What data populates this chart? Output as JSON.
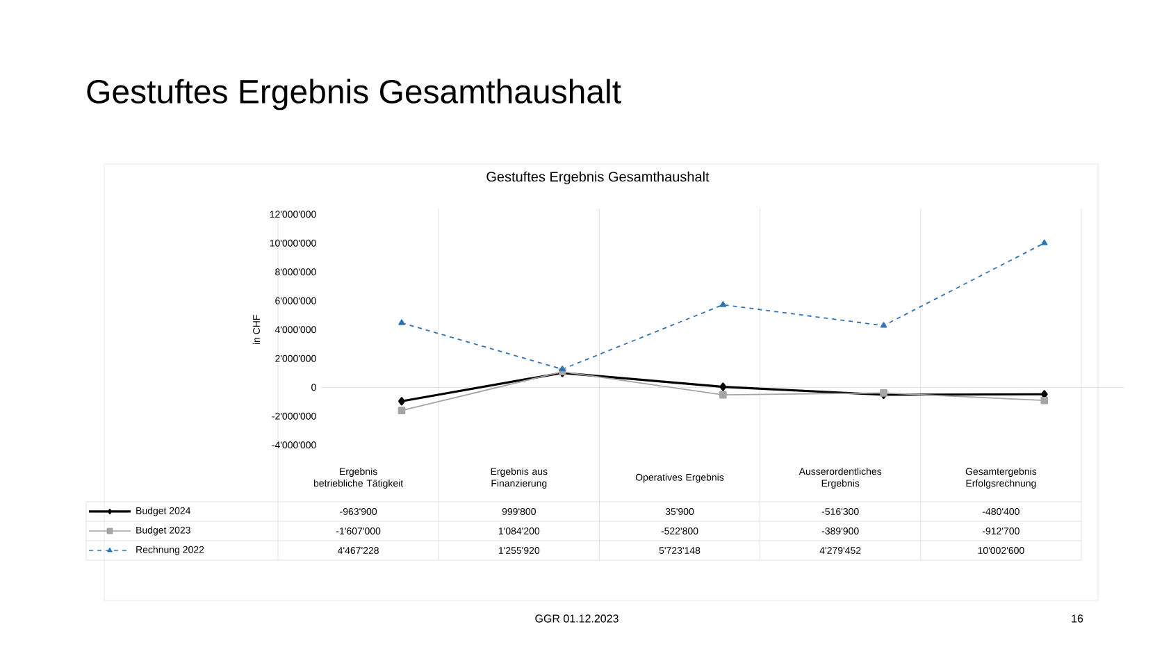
{
  "chart_data": {
    "type": "line",
    "title": "Gestuftes Ergebnis Gesamthaushalt",
    "subtitle": "Gestuftes Ergebnis Gesamthaushalt",
    "ylabel": "in CHF",
    "categories": [
      "Ergebnis betriebliche Tätigkeit",
      "Ergebnis aus Finanzierung",
      "Operatives Ergebnis",
      "Ausserordentliches Ergebnis",
      "Gesamtergebnis Erfolgsrechnung"
    ],
    "series": [
      {
        "name": "Budget 2024",
        "color": "#000000",
        "marker": "diamond",
        "line_style": "solid",
        "values": [
          -963900,
          999800,
          35900,
          -516300,
          -480400
        ],
        "value_labels": [
          "-963'900",
          "999'800",
          "35'900",
          "-516'300",
          "-480'400"
        ]
      },
      {
        "name": "Budget 2023",
        "color": "#a5a5a5",
        "marker": "square",
        "line_style": "solid",
        "values": [
          -1607000,
          1084200,
          -522800,
          -389900,
          -912700
        ],
        "value_labels": [
          "-1'607'000",
          "1'084'200",
          "-522'800",
          "-389'900",
          "-912'700"
        ]
      },
      {
        "name": "Rechnung 2022",
        "color": "#2e75b6",
        "marker": "triangle",
        "line_style": "dashed",
        "values": [
          4467228,
          1255920,
          5723148,
          4279452,
          10002600
        ],
        "value_labels": [
          "4'467'228",
          "1'255'920",
          "5'723'148",
          "4'279'452",
          "10'002'600"
        ]
      }
    ],
    "ylim": [
      -4000000,
      12000000
    ],
    "yticks": [
      {
        "value": -4000000,
        "label": "-4'000'000"
      },
      {
        "value": -2000000,
        "label": "-2'000'000"
      },
      0,
      {
        "value": 2000000,
        "label": "2'000'000"
      },
      {
        "value": 4000000,
        "label": "4'000'000"
      },
      {
        "value": 6000000,
        "label": "6'000'000"
      },
      {
        "value": 8000000,
        "label": "8'000'000"
      },
      {
        "value": 10000000,
        "label": "10'000'000"
      },
      {
        "value": 12000000,
        "label": "12'000'000"
      }
    ],
    "legend": "bottom",
    "annotations": [
      "GGR 01.12.2023",
      "16"
    ]
  }
}
